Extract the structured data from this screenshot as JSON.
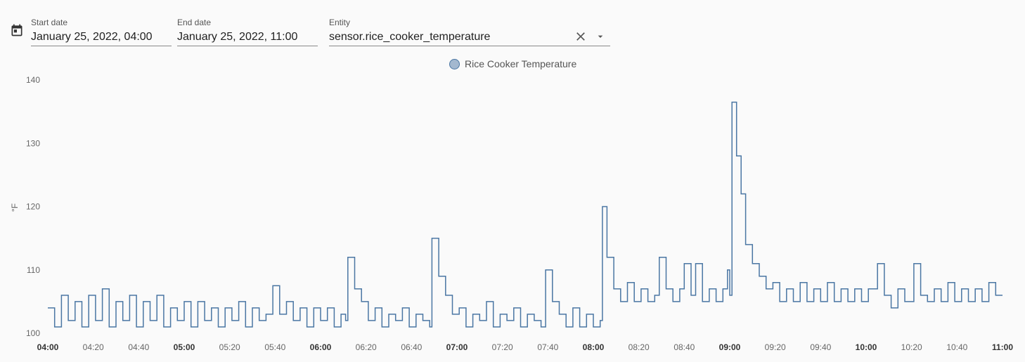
{
  "filters": {
    "start": {
      "label": "Start date",
      "value": "January 25, 2022, 04:00"
    },
    "end": {
      "label": "End date",
      "value": "January 25, 2022, 11:00"
    },
    "entity": {
      "label": "Entity",
      "value": "sensor.rice_cooker_temperature"
    }
  },
  "icons": {
    "calendar": "calendar-icon",
    "clear": "close-icon",
    "dropdown": "chevron-down-icon"
  },
  "chart_data": {
    "type": "line",
    "series": [
      {
        "name": "Rice Cooker Temperature",
        "color": "#4a76a3",
        "points": [
          [
            "04:00",
            104
          ],
          [
            "04:03",
            101
          ],
          [
            "04:06",
            106
          ],
          [
            "04:09",
            102
          ],
          [
            "04:12",
            105
          ],
          [
            "04:15",
            101
          ],
          [
            "04:18",
            106
          ],
          [
            "04:21",
            102
          ],
          [
            "04:24",
            107
          ],
          [
            "04:27",
            101
          ],
          [
            "04:30",
            105
          ],
          [
            "04:33",
            102
          ],
          [
            "04:36",
            106
          ],
          [
            "04:39",
            101
          ],
          [
            "04:42",
            105
          ],
          [
            "04:45",
            102
          ],
          [
            "04:48",
            106
          ],
          [
            "04:51",
            101
          ],
          [
            "04:54",
            104
          ],
          [
            "04:57",
            102
          ],
          [
            "05:00",
            105
          ],
          [
            "05:03",
            101
          ],
          [
            "05:06",
            105
          ],
          [
            "05:09",
            102
          ],
          [
            "05:12",
            104
          ],
          [
            "05:15",
            101
          ],
          [
            "05:18",
            104
          ],
          [
            "05:21",
            102
          ],
          [
            "05:24",
            105
          ],
          [
            "05:27",
            101
          ],
          [
            "05:30",
            104
          ],
          [
            "05:33",
            102
          ],
          [
            "05:36",
            103
          ],
          [
            "05:39",
            107.5
          ],
          [
            "05:42",
            103
          ],
          [
            "05:45",
            105
          ],
          [
            "05:48",
            102
          ],
          [
            "05:51",
            104
          ],
          [
            "05:54",
            101
          ],
          [
            "05:57",
            104
          ],
          [
            "06:00",
            102
          ],
          [
            "06:03",
            104
          ],
          [
            "06:06",
            101
          ],
          [
            "06:09",
            103
          ],
          [
            "06:11",
            102
          ],
          [
            "06:12",
            112
          ],
          [
            "06:15",
            107
          ],
          [
            "06:18",
            105
          ],
          [
            "06:21",
            102
          ],
          [
            "06:24",
            104
          ],
          [
            "06:27",
            101
          ],
          [
            "06:30",
            103
          ],
          [
            "06:33",
            102
          ],
          [
            "06:36",
            104
          ],
          [
            "06:39",
            101
          ],
          [
            "06:42",
            103
          ],
          [
            "06:45",
            102
          ],
          [
            "06:48",
            101
          ],
          [
            "06:49",
            115
          ],
          [
            "06:52",
            109
          ],
          [
            "06:55",
            106
          ],
          [
            "06:58",
            103
          ],
          [
            "07:01",
            104
          ],
          [
            "07:04",
            101
          ],
          [
            "07:07",
            103
          ],
          [
            "07:10",
            102
          ],
          [
            "07:13",
            105
          ],
          [
            "07:16",
            101
          ],
          [
            "07:19",
            103
          ],
          [
            "07:22",
            102
          ],
          [
            "07:25",
            104
          ],
          [
            "07:28",
            101
          ],
          [
            "07:31",
            103
          ],
          [
            "07:34",
            102
          ],
          [
            "07:37",
            101
          ],
          [
            "07:39",
            110
          ],
          [
            "07:42",
            105
          ],
          [
            "07:45",
            103
          ],
          [
            "07:48",
            101
          ],
          [
            "07:51",
            104
          ],
          [
            "07:54",
            101
          ],
          [
            "07:57",
            103
          ],
          [
            "08:00",
            101
          ],
          [
            "08:03",
            102
          ],
          [
            "08:04",
            120
          ],
          [
            "08:06",
            112
          ],
          [
            "08:09",
            107
          ],
          [
            "08:12",
            105
          ],
          [
            "08:15",
            108
          ],
          [
            "08:18",
            105
          ],
          [
            "08:21",
            107
          ],
          [
            "08:24",
            105
          ],
          [
            "08:27",
            106
          ],
          [
            "08:29",
            112
          ],
          [
            "08:32",
            107
          ],
          [
            "08:35",
            105
          ],
          [
            "08:38",
            107
          ],
          [
            "08:40",
            111
          ],
          [
            "08:43",
            106
          ],
          [
            "08:45",
            111
          ],
          [
            "08:48",
            105
          ],
          [
            "08:51",
            107
          ],
          [
            "08:54",
            105
          ],
          [
            "08:57",
            107
          ],
          [
            "08:59",
            110
          ],
          [
            "09:00",
            106
          ],
          [
            "09:01",
            136.5
          ],
          [
            "09:03",
            128
          ],
          [
            "09:05",
            122
          ],
          [
            "09:07",
            114
          ],
          [
            "09:10",
            111
          ],
          [
            "09:13",
            109
          ],
          [
            "09:16",
            107
          ],
          [
            "09:19",
            108
          ],
          [
            "09:22",
            105
          ],
          [
            "09:25",
            107
          ],
          [
            "09:28",
            105
          ],
          [
            "09:31",
            108
          ],
          [
            "09:34",
            105
          ],
          [
            "09:37",
            107
          ],
          [
            "09:40",
            105
          ],
          [
            "09:43",
            108
          ],
          [
            "09:46",
            105
          ],
          [
            "09:49",
            107
          ],
          [
            "09:52",
            105
          ],
          [
            "09:55",
            107
          ],
          [
            "09:58",
            105
          ],
          [
            "10:01",
            107
          ],
          [
            "10:05",
            111
          ],
          [
            "10:08",
            106
          ],
          [
            "10:11",
            104
          ],
          [
            "10:14",
            107
          ],
          [
            "10:17",
            105
          ],
          [
            "10:21",
            111
          ],
          [
            "10:24",
            106
          ],
          [
            "10:27",
            105
          ],
          [
            "10:30",
            107
          ],
          [
            "10:33",
            105
          ],
          [
            "10:36",
            108
          ],
          [
            "10:39",
            105
          ],
          [
            "10:42",
            107
          ],
          [
            "10:45",
            105
          ],
          [
            "10:48",
            107
          ],
          [
            "10:51",
            105
          ],
          [
            "10:54",
            108
          ],
          [
            "10:57",
            106
          ],
          [
            "11:00",
            106
          ]
        ]
      }
    ],
    "ylabel": "°F",
    "ylim": [
      100,
      140
    ],
    "yticks": [
      "100",
      "110",
      "120",
      "130",
      "140"
    ],
    "xlim": [
      "04:00",
      "11:00"
    ],
    "xticks": [
      "04:00",
      "04:20",
      "04:40",
      "05:00",
      "05:20",
      "05:40",
      "06:00",
      "06:20",
      "06:40",
      "07:00",
      "07:20",
      "07:40",
      "08:00",
      "08:20",
      "08:40",
      "09:00",
      "09:20",
      "09:40",
      "10:00",
      "10:20",
      "10:40",
      "11:00"
    ],
    "grid": false,
    "legend": "top-center"
  }
}
